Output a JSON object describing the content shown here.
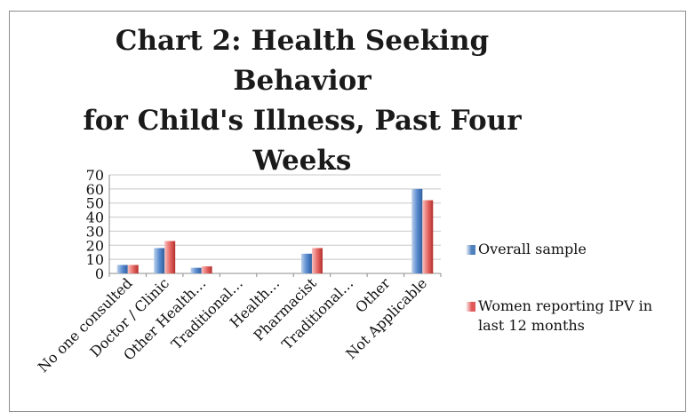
{
  "chart_data": {
    "type": "bar",
    "title": "Chart 2: Health Seeking Behavior for Child's Illness, Past Four Weeks",
    "title_lines": [
      "Chart 2: Health Seeking Behavior",
      "for Child's Illness, Past Four",
      "Weeks"
    ],
    "categories": [
      "No one consulted",
      "Doctor / Clinic",
      "Other Health…",
      "Traditional…",
      "Health…",
      "Pharmacist",
      "Traditional…",
      "Other",
      "Not Applicable"
    ],
    "series": [
      {
        "name": "Overall sample",
        "color": "#4f81bd",
        "values": [
          6,
          18,
          4,
          0,
          0,
          14,
          0,
          0,
          60
        ]
      },
      {
        "name": "Women reporting IPV in last 12 months",
        "color": "#e05a5a",
        "values": [
          6,
          23,
          5,
          0,
          0,
          18,
          0,
          0,
          52
        ]
      }
    ],
    "legend_lines": [
      [
        "Overall sample"
      ],
      [
        "Women reporting IPV in",
        "last 12 months"
      ]
    ],
    "yticks": [
      0,
      10,
      20,
      30,
      40,
      50,
      60,
      70
    ],
    "ylim": [
      0,
      70
    ],
    "grid": true,
    "legend": "right"
  }
}
